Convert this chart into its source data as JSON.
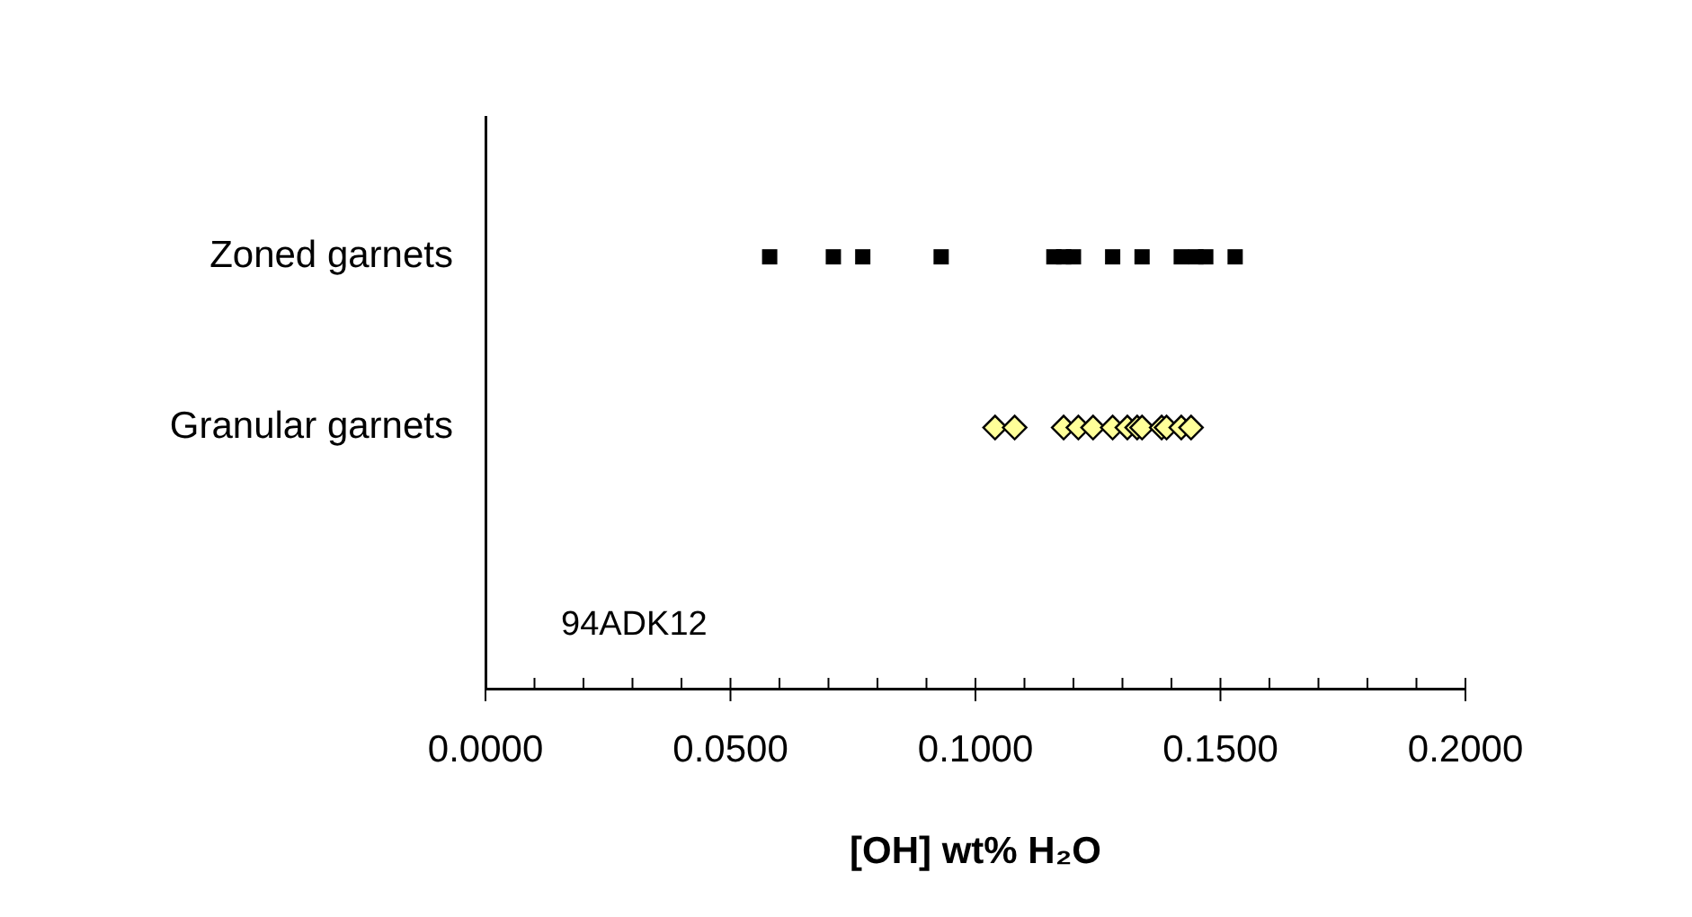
{
  "chart_data": {
    "type": "scatter",
    "orientation": "horizontal",
    "xlabel": "[OH] wt% H₂O",
    "categories": [
      "Zoned garnets",
      "Granular garnets"
    ],
    "xlim": [
      0,
      0.2
    ],
    "xticks": [
      {
        "value": 0,
        "label": "0.0000"
      },
      {
        "value": 0.01,
        "label": null
      },
      {
        "value": 0.02,
        "label": null
      },
      {
        "value": 0.03,
        "label": null
      },
      {
        "value": 0.04,
        "label": null
      },
      {
        "value": 0.05,
        "label": "0.0500"
      },
      {
        "value": 0.06,
        "label": null
      },
      {
        "value": 0.07,
        "label": null
      },
      {
        "value": 0.08,
        "label": null
      },
      {
        "value": 0.09,
        "label": null
      },
      {
        "value": 0.1,
        "label": "0.1000"
      },
      {
        "value": 0.11,
        "label": null
      },
      {
        "value": 0.12,
        "label": null
      },
      {
        "value": 0.13,
        "label": null
      },
      {
        "value": 0.14,
        "label": null
      },
      {
        "value": 0.15,
        "label": "0.1500"
      },
      {
        "value": 0.16,
        "label": null
      },
      {
        "value": 0.17,
        "label": null
      },
      {
        "value": 0.18,
        "label": null
      },
      {
        "value": 0.19,
        "label": null
      },
      {
        "value": 0.2,
        "label": "0.2000"
      }
    ],
    "grid": false,
    "legend": false,
    "annotations": [
      "94ADK12"
    ],
    "series": [
      {
        "marker": "square",
        "color": "#000000",
        "x": [
          "Zoned garnets",
          "Zoned garnets",
          "Zoned garnets",
          "Zoned garnets",
          "Zoned garnets",
          "Zoned garnets",
          "Zoned garnets",
          "Zoned garnets",
          "Zoned garnets",
          "Zoned garnets",
          "Zoned garnets",
          "Zoned garnets",
          "Zoned garnets"
        ],
        "values": [
          0.058,
          0.071,
          0.077,
          0.093,
          0.116,
          0.118,
          0.12,
          0.128,
          0.134,
          0.142,
          0.145,
          0.147,
          0.153
        ]
      },
      {
        "marker": "diamond",
        "color": "#ffff99",
        "x": [
          "Granular garnets",
          "Granular garnets",
          "Granular garnets",
          "Granular garnets",
          "Granular garnets",
          "Granular garnets",
          "Granular garnets",
          "Granular garnets",
          "Granular garnets",
          "Granular garnets",
          "Granular garnets",
          "Granular garnets",
          "Granular garnets"
        ],
        "values": [
          0.104,
          0.108,
          0.118,
          0.121,
          0.124,
          0.128,
          0.131,
          0.133,
          0.134,
          0.138,
          0.139,
          0.142,
          0.144
        ]
      }
    ]
  }
}
